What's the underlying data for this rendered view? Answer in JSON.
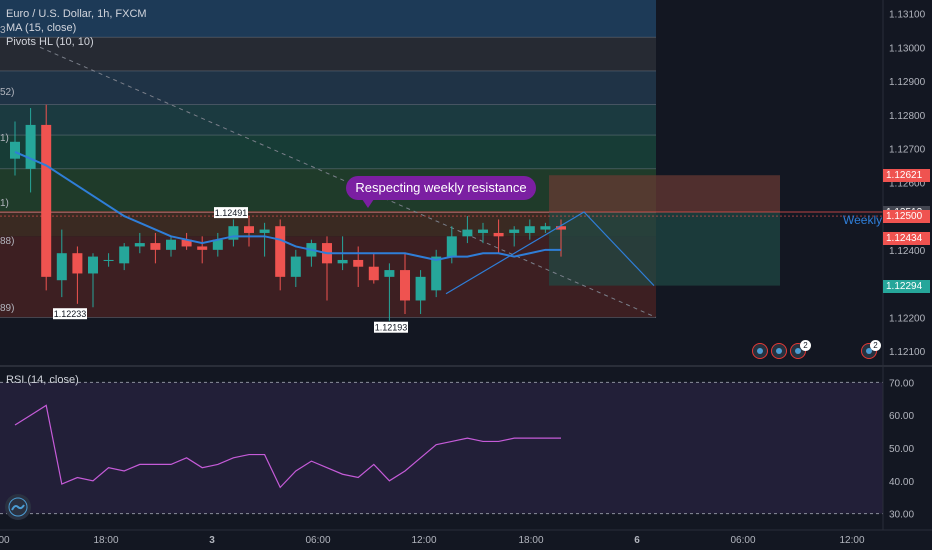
{
  "legend": {
    "symbol": "Euro / U.S. Dollar, 1h, FXCM",
    "ma": "MA (15, close)",
    "pivots": "Pivots HL (10, 10)",
    "rsi": "RSI (14, close)"
  },
  "annotation": "Respecting weekly resistance",
  "weekly_label": "Weekly",
  "colors": {
    "background": "#131722",
    "up": "#26a69a",
    "down": "#ef5350",
    "ma_line": "#2f7ed8",
    "rsi_line": "#c55bd8",
    "callout": "#7b1fa2"
  },
  "price_tags": [
    {
      "label": "1.12621",
      "value": 1.12621,
      "bg": "#ef5350"
    },
    {
      "label": "1.12512",
      "value": 1.12512,
      "bg": "#434651"
    },
    {
      "label": "1.12500",
      "value": 1.125,
      "bg": "#ef5350"
    },
    {
      "label": "1.12434",
      "value": 1.12434,
      "bg": "#ef5350"
    },
    {
      "label": "1.12294",
      "value": 1.12294,
      "bg": "#26a69a"
    }
  ],
  "pivot_labels": [
    {
      "label": "1.12491",
      "value": 1.12491
    },
    {
      "label": "1.12233",
      "value": 1.12233
    },
    {
      "label": "1.12193",
      "value": 1.12193
    }
  ],
  "left_edge_labels": [
    "3",
    "52)",
    "1)",
    "1)",
    "88)",
    "89)"
  ],
  "watchlist_badges": [
    "2",
    "2"
  ],
  "chart_data": {
    "type": "candlestick",
    "price_axis": {
      "ticks": [
        1.131,
        1.13,
        1.129,
        1.128,
        1.127,
        1.126,
        1.125,
        1.124,
        1.123,
        1.122,
        1.121
      ],
      "tick_labels": [
        "1.13100",
        "1.13000",
        "1.12900",
        "1.12800",
        "1.12700",
        "1.12600",
        "1.12500",
        "1.12400",
        "1.12300",
        "1.12200",
        "1.12100"
      ],
      "range": [
        1.1205,
        1.1314
      ]
    },
    "time_axis": {
      "labels": [
        "00",
        "18:00",
        "3",
        "06:00",
        "12:00",
        "18:00",
        "6",
        "06:00",
        "12:00"
      ]
    },
    "candles": [
      {
        "o": 1.1267,
        "h": 1.1278,
        "l": 1.1262,
        "c": 1.1272
      },
      {
        "o": 1.1264,
        "h": 1.1282,
        "l": 1.1257,
        "c": 1.1277
      },
      {
        "o": 1.1277,
        "h": 1.1283,
        "l": 1.1228,
        "c": 1.1232
      },
      {
        "o": 1.1231,
        "h": 1.1246,
        "l": 1.1226,
        "c": 1.1239
      },
      {
        "o": 1.1239,
        "h": 1.1241,
        "l": 1.1224,
        "c": 1.1233
      },
      {
        "o": 1.1233,
        "h": 1.1239,
        "l": 1.1223,
        "c": 1.1238
      },
      {
        "o": 1.1237,
        "h": 1.1239,
        "l": 1.1235,
        "c": 1.1237
      },
      {
        "o": 1.1236,
        "h": 1.1242,
        "l": 1.1234,
        "c": 1.1241
      },
      {
        "o": 1.1241,
        "h": 1.1245,
        "l": 1.1239,
        "c": 1.1242
      },
      {
        "o": 1.1242,
        "h": 1.1245,
        "l": 1.1236,
        "c": 1.124
      },
      {
        "o": 1.124,
        "h": 1.1244,
        "l": 1.1238,
        "c": 1.1243
      },
      {
        "o": 1.1243,
        "h": 1.1245,
        "l": 1.124,
        "c": 1.1241
      },
      {
        "o": 1.1241,
        "h": 1.1244,
        "l": 1.1236,
        "c": 1.124
      },
      {
        "o": 1.124,
        "h": 1.1245,
        "l": 1.1238,
        "c": 1.1243
      },
      {
        "o": 1.1243,
        "h": 1.1249,
        "l": 1.1241,
        "c": 1.1247
      },
      {
        "o": 1.1247,
        "h": 1.125,
        "l": 1.1241,
        "c": 1.1245
      },
      {
        "o": 1.1245,
        "h": 1.1248,
        "l": 1.1238,
        "c": 1.1246
      },
      {
        "o": 1.1247,
        "h": 1.1249,
        "l": 1.1228,
        "c": 1.1232
      },
      {
        "o": 1.1232,
        "h": 1.124,
        "l": 1.1229,
        "c": 1.1238
      },
      {
        "o": 1.1238,
        "h": 1.1243,
        "l": 1.1235,
        "c": 1.1242
      },
      {
        "o": 1.1242,
        "h": 1.1244,
        "l": 1.1225,
        "c": 1.1236
      },
      {
        "o": 1.1236,
        "h": 1.1244,
        "l": 1.1234,
        "c": 1.1237
      },
      {
        "o": 1.1237,
        "h": 1.1241,
        "l": 1.1229,
        "c": 1.1235
      },
      {
        "o": 1.1235,
        "h": 1.1239,
        "l": 1.123,
        "c": 1.1231
      },
      {
        "o": 1.1232,
        "h": 1.1236,
        "l": 1.1219,
        "c": 1.1234
      },
      {
        "o": 1.1234,
        "h": 1.1239,
        "l": 1.1221,
        "c": 1.1225
      },
      {
        "o": 1.1225,
        "h": 1.1234,
        "l": 1.1221,
        "c": 1.1232
      },
      {
        "o": 1.1228,
        "h": 1.124,
        "l": 1.1226,
        "c": 1.1238
      },
      {
        "o": 1.1238,
        "h": 1.1247,
        "l": 1.1236,
        "c": 1.1244
      },
      {
        "o": 1.1244,
        "h": 1.125,
        "l": 1.1242,
        "c": 1.1246
      },
      {
        "o": 1.1245,
        "h": 1.1248,
        "l": 1.1242,
        "c": 1.1246
      },
      {
        "o": 1.1245,
        "h": 1.1249,
        "l": 1.1239,
        "c": 1.1244
      },
      {
        "o": 1.1245,
        "h": 1.1247,
        "l": 1.1241,
        "c": 1.1246
      },
      {
        "o": 1.1245,
        "h": 1.1249,
        "l": 1.1243,
        "c": 1.1247
      },
      {
        "o": 1.1246,
        "h": 1.1248,
        "l": 1.1245,
        "c": 1.1247
      },
      {
        "o": 1.1247,
        "h": 1.1249,
        "l": 1.1238,
        "c": 1.1246
      }
    ],
    "ma": [
      1.1269,
      1.1267,
      1.1265,
      1.1262,
      1.1259,
      1.1256,
      1.1253,
      1.125,
      1.1248,
      1.1246,
      1.1244,
      1.1243,
      1.1242,
      1.1243,
      1.1244,
      1.1244,
      1.1244,
      1.1243,
      1.1241,
      1.124,
      1.1239,
      1.1239,
      1.1239,
      1.1239,
      1.1239,
      1.1239,
      1.1238,
      1.1237,
      1.1238,
      1.1238,
      1.1239,
      1.1239,
      1.1238,
      1.1239,
      1.124,
      1.124
    ],
    "rsi": {
      "range": [
        25,
        75
      ],
      "levels": [
        70,
        30
      ],
      "tick_labels": [
        "70.00",
        "60.00",
        "50.00",
        "40.00",
        "30.00"
      ],
      "values": [
        57,
        60,
        63,
        39,
        41,
        40,
        44,
        43,
        45,
        45,
        45,
        47,
        44,
        45,
        47,
        48,
        48,
        38,
        43,
        46,
        44,
        42,
        41,
        45,
        40,
        43,
        47,
        51,
        52,
        53,
        52,
        52,
        53,
        53,
        53,
        53
      ]
    }
  }
}
